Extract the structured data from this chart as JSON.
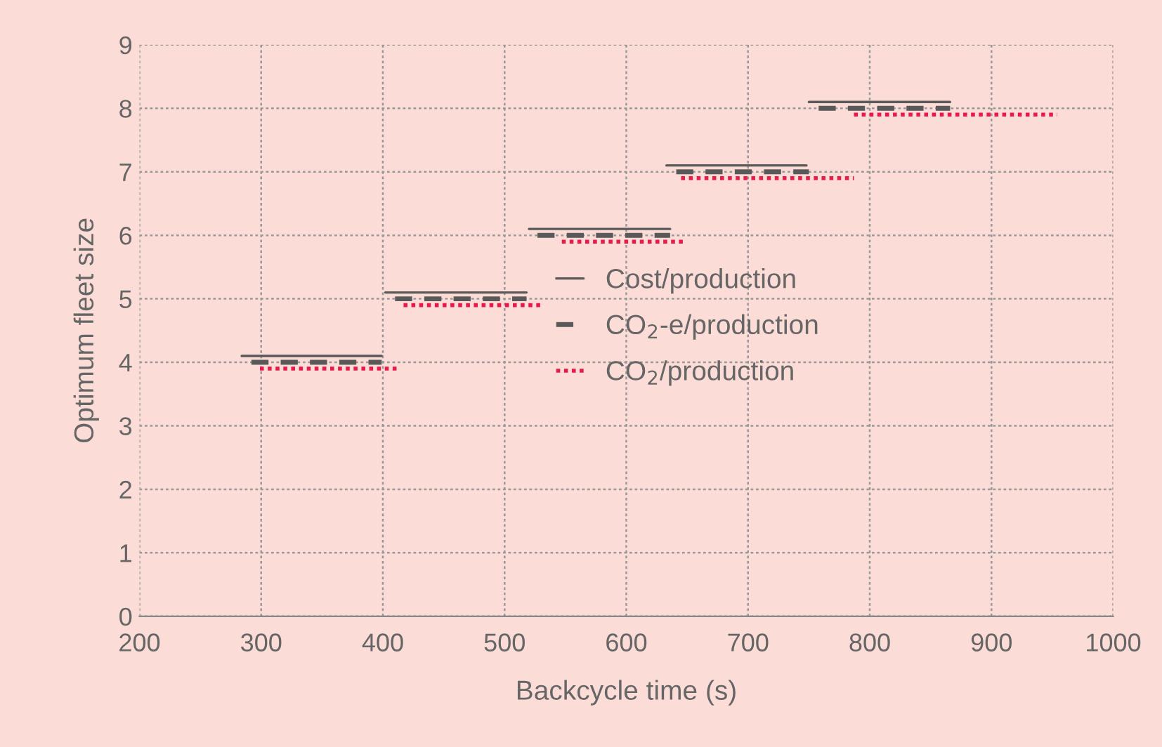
{
  "chart_data": {
    "type": "line",
    "xlabel": "Backcycle time (s)",
    "ylabel": "Optimum fleet size",
    "xlim": [
      200,
      1000
    ],
    "xticks": [
      200,
      300,
      400,
      500,
      600,
      700,
      800,
      900,
      1000
    ],
    "ylim": [
      0,
      9
    ],
    "yticks": [
      0,
      1,
      2,
      3,
      4,
      5,
      6,
      7,
      8,
      9
    ],
    "grid": true,
    "legend": "center",
    "marker": "none",
    "series": [
      {
        "name": "Cost/production",
        "color": "#595959",
        "line_style": "solid",
        "x": [
          284,
          399
        ],
        "values": [
          4.1,
          4.1
        ]
      },
      {
        "color": "#595959",
        "line_style": "solid",
        "x": [
          402,
          518
        ],
        "values": [
          5.1,
          5.1
        ]
      },
      {
        "color": "#595959",
        "line_style": "solid",
        "x": [
          520,
          636
        ],
        "values": [
          6.1,
          6.1
        ]
      },
      {
        "color": "#595959",
        "line_style": "solid",
        "x": [
          633,
          748
        ],
        "values": [
          7.1,
          7.1
        ]
      },
      {
        "color": "#595959",
        "line_style": "solid",
        "x": [
          750,
          866
        ],
        "values": [
          8.1,
          8.1
        ]
      },
      {
        "name": "CO$_{2}$-e/production",
        "color": "#595959",
        "line_style": "dashed",
        "x": [
          292,
          399
        ],
        "values": [
          4,
          4
        ]
      },
      {
        "color": "#595959",
        "line_style": "dashed",
        "x": [
          410,
          518
        ],
        "values": [
          5,
          5
        ]
      },
      {
        "color": "#595959",
        "line_style": "dashed",
        "x": [
          527,
          636
        ],
        "values": [
          6,
          6
        ]
      },
      {
        "color": "#595959",
        "line_style": "dashed",
        "x": [
          641,
          750
        ],
        "values": [
          7,
          7
        ]
      },
      {
        "color": "#595959",
        "line_style": "dashed",
        "x": [
          758,
          866
        ],
        "values": [
          8,
          8
        ]
      },
      {
        "name": "CO$_{2}$/production",
        "color": "#e8194b",
        "line_style": "dotted",
        "x": [
          299,
          412
        ],
        "values": [
          3.9,
          3.9
        ]
      },
      {
        "color": "#e8194b",
        "line_style": "dotted",
        "x": [
          417,
          530
        ],
        "values": [
          4.9,
          4.9
        ]
      },
      {
        "color": "#e8194b",
        "line_style": "dotted",
        "x": [
          547,
          648
        ],
        "values": [
          5.9,
          5.9
        ]
      },
      {
        "color": "#e8194b",
        "line_style": "dotted",
        "x": [
          645,
          787
        ],
        "values": [
          6.9,
          6.9
        ]
      },
      {
        "color": "#e8194b",
        "line_style": "dotted",
        "x": [
          787,
          954
        ],
        "values": [
          7.9,
          7.9
        ]
      }
    ]
  }
}
